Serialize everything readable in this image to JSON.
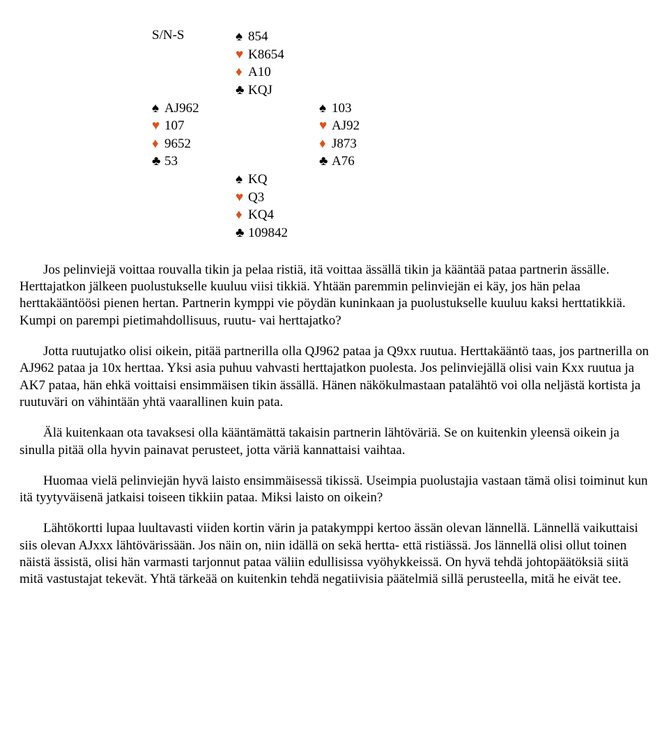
{
  "deal": {
    "label": "S/N-S",
    "suits": {
      "spade": "♠",
      "heart": "♥",
      "diamond": "♦",
      "club": "♣"
    },
    "north": {
      "s": "854",
      "h": "K8654",
      "d": "A10",
      "c": "KQJ"
    },
    "west": {
      "s": "AJ962",
      "h": "107",
      "d": "9652",
      "c": "53"
    },
    "east": {
      "s": "103",
      "h": "AJ92",
      "d": "J873",
      "c": "A76"
    },
    "south": {
      "s": "KQ",
      "h": "Q3",
      "d": "KQ4",
      "c": "109842"
    }
  },
  "paragraphs": {
    "p1": "Jos pelinviejä voittaa rouvalla tikin ja pelaa ristiä, itä voittaa ässällä tikin ja kääntää pataa partnerin ässälle. Herttajatkon jälkeen puolustukselle kuuluu viisi tikkiä. Yhtään paremmin pelinviejän ei käy, jos hän pelaa herttakääntöösi pienen hertan. Partnerin kymppi vie pöydän kuninkaan ja puolustukselle kuuluu kaksi herttatikkiä. Kumpi on parempi pietimahdollisuus, ruutu- vai herttajatko?",
    "p2": "Jotta ruutujatko olisi oikein, pitää partnerilla olla QJ962 pataa ja Q9xx ruutua. Herttakääntö taas, jos partnerilla on AJ962 pataa ja 10x herttaa. Yksi asia puhuu vahvasti herttajatkon puolesta. Jos pelinviejällä olisi vain Kxx ruutua ja AK7 pataa, hän ehkä voittaisi ensimmäisen tikin ässällä. Hänen näkökulmastaan patalähtö voi olla neljästä kortista ja ruutuväri on vähintään yhtä vaarallinen kuin pata.",
    "p3": "Älä kuitenkaan ota tavaksesi olla kääntämättä takaisin partnerin lähtöväriä. Se on kuitenkin yleensä oikein ja sinulla pitää olla hyvin painavat perusteet, jotta väriä kannattaisi vaihtaa.",
    "p4": "Huomaa vielä pelinviejän hyvä laisto ensimmäisessä tikissä. Useimpia puolustajia vastaan tämä olisi toiminut kun itä tyytyväisenä jatkaisi toiseen tikkiin pataa. Miksi laisto on oikein?",
    "p5": "Lähtökortti lupaa luultavasti viiden kortin värin ja patakymppi kertoo ässän olevan lännellä. Lännellä vaikuttaisi siis olevan AJxxx lähtövärissään. Jos näin on, niin idällä on sekä hertta- että ristiässä. Jos lännellä olisi ollut toinen näistä ässistä, olisi hän varmasti tarjonnut pataa väliin edullisissa vyöhykkeissä. On hyvä tehdä johtopäätöksiä siitä mitä vastustajat tekevät. Yhtä tärkeää on kuitenkin tehdä negatiivisia päätelmiä sillä perusteella, mitä he eivät tee."
  },
  "style": {
    "text_color": "#000000",
    "suit_red": "#d9531e",
    "background": "#ffffff",
    "body_fontsize": 19,
    "font_family": "Times New Roman"
  }
}
